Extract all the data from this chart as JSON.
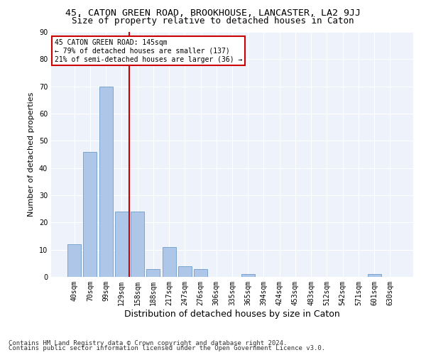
{
  "title_line1": "45, CATON GREEN ROAD, BROOKHOUSE, LANCASTER, LA2 9JJ",
  "title_line2": "Size of property relative to detached houses in Caton",
  "xlabel": "Distribution of detached houses by size in Caton",
  "ylabel": "Number of detached properties",
  "footer_line1": "Contains HM Land Registry data © Crown copyright and database right 2024.",
  "footer_line2": "Contains public sector information licensed under the Open Government Licence v3.0.",
  "categories": [
    "40sqm",
    "70sqm",
    "99sqm",
    "129sqm",
    "158sqm",
    "188sqm",
    "217sqm",
    "247sqm",
    "276sqm",
    "306sqm",
    "335sqm",
    "365sqm",
    "394sqm",
    "424sqm",
    "453sqm",
    "483sqm",
    "512sqm",
    "542sqm",
    "571sqm",
    "601sqm",
    "630sqm"
  ],
  "values": [
    12,
    46,
    70,
    24,
    24,
    3,
    11,
    4,
    3,
    0,
    0,
    1,
    0,
    0,
    0,
    0,
    0,
    0,
    0,
    1,
    0
  ],
  "bar_color": "#aec6e8",
  "bar_edgecolor": "#5a8fc2",
  "vline_x": 3.5,
  "vline_color": "#cc0000",
  "annotation_text": "45 CATON GREEN ROAD: 145sqm\n← 79% of detached houses are smaller (137)\n21% of semi-detached houses are larger (36) →",
  "annotation_box_color": "#cc0000",
  "ylim": [
    0,
    90
  ],
  "yticks": [
    0,
    10,
    20,
    30,
    40,
    50,
    60,
    70,
    80,
    90
  ],
  "background_color": "#eef2fa",
  "grid_color": "#ffffff",
  "title1_fontsize": 9.5,
  "title2_fontsize": 9,
  "xlabel_fontsize": 9,
  "ylabel_fontsize": 8,
  "tick_fontsize": 7,
  "footer_fontsize": 6.5
}
